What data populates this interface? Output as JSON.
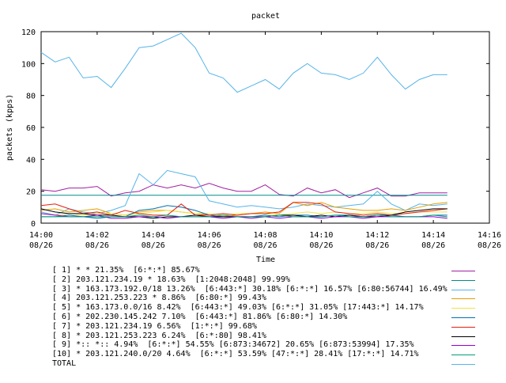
{
  "chart_data": {
    "type": "line",
    "title": "packet",
    "xlabel": "Time",
    "ylabel": "packets (kpps)",
    "ylim": [
      0,
      120
    ],
    "yticks": [
      0,
      20,
      40,
      60,
      80,
      100,
      120
    ],
    "x_ticks": [
      {
        "time": "14:00",
        "date": "08/26"
      },
      {
        "time": "14:02",
        "date": "08/26"
      },
      {
        "time": "14:04",
        "date": "08/26"
      },
      {
        "time": "14:06",
        "date": "08/26"
      },
      {
        "time": "14:08",
        "date": "08/26"
      },
      {
        "time": "14:10",
        "date": "08/26"
      },
      {
        "time": "14:12",
        "date": "08/26"
      },
      {
        "time": "14:14",
        "date": "08/26"
      },
      {
        "time": "14:16",
        "date": "08/26"
      }
    ],
    "x": [
      "14:00",
      "14:00:30",
      "14:01",
      "14:01:30",
      "14:02",
      "14:02:30",
      "14:03",
      "14:03:30",
      "14:04",
      "14:04:30",
      "14:05",
      "14:05:30",
      "14:06",
      "14:06:30",
      "14:07",
      "14:07:30",
      "14:08",
      "14:08:30",
      "14:09",
      "14:09:30",
      "14:10",
      "14:10:30",
      "14:11",
      "14:11:30",
      "14:12",
      "14:12:30",
      "14:13",
      "14:13:30",
      "14:14",
      "14:14:30"
    ],
    "grid": false,
    "legend_position": "bottom",
    "series": [
      {
        "name": "[ 1] * * 21.35%  [6:*:*] 85.67%",
        "color": "#a020a0",
        "values": [
          21,
          20,
          22,
          22,
          23,
          17,
          19,
          20,
          24,
          22,
          24,
          22,
          25,
          22,
          20,
          20,
          24,
          18,
          17,
          22,
          19,
          21,
          16,
          19,
          22,
          17,
          17,
          19,
          19,
          19
        ]
      },
      {
        "name": "[ 2] 203.121.234.19 * 18.63%  [1:2048:2048] 99.99%",
        "color": "#008b8b",
        "values": [
          17.5,
          17.5,
          17.5,
          17.5,
          17.5,
          17.5,
          17.5,
          17.5,
          17.5,
          17.5,
          17.5,
          17.5,
          17.5,
          17.5,
          17.5,
          17.5,
          17.5,
          17.5,
          17.5,
          17.5,
          17.5,
          17.5,
          17.5,
          17.5,
          17.5,
          17.5,
          17.5,
          17.5,
          17.5,
          17.5
        ]
      },
      {
        "name": "[ 3] * 163.173.192.0/18 13.26%  [6:443:*] 30.18% [6:*:*] 16.57% [6:80:56744] 16.49%",
        "color": "#56b4e9",
        "values": [
          7,
          5,
          9,
          7,
          6,
          8,
          11,
          31,
          24,
          33,
          31,
          29,
          14,
          12,
          10,
          11,
          10,
          9,
          10,
          12,
          11,
          10,
          11,
          12,
          20,
          12,
          8,
          12,
          11,
          12
        ]
      },
      {
        "name": "[ 4] 203.121.253.223 * 8.86%  [6:80:*] 99.43%",
        "color": "#e69f00",
        "values": [
          8,
          9,
          7,
          8,
          9,
          6,
          5,
          7,
          8,
          8,
          7,
          6,
          5,
          4,
          5,
          6,
          7,
          6,
          13,
          11,
          13,
          10,
          9,
          8,
          8,
          9,
          8,
          10,
          12,
          13
        ]
      },
      {
        "name": "[ 5] * 163.173.0.0/16 8.42%  [6:443:*] 49.03% [6:*:*] 31.05% [17:443:*] 14.17%",
        "color": "#f0e442",
        "values": [
          6,
          5,
          6,
          5,
          6,
          6,
          5,
          6,
          7,
          8,
          7,
          6,
          6,
          5,
          6,
          6,
          6,
          5,
          6,
          7,
          6,
          7,
          6,
          6,
          7,
          6,
          6,
          7,
          7,
          7
        ]
      },
      {
        "name": "[ 6] * 202.230.145.242 7.10%  [6:443:*] 81.86% [6:80:*] 14.30%",
        "color": "#0072b2",
        "values": [
          4,
          4,
          5,
          4,
          3,
          4,
          4,
          8,
          9,
          11,
          10,
          8,
          5,
          4,
          4,
          4,
          5,
          4,
          5,
          5,
          4,
          5,
          5,
          4,
          5,
          5,
          4,
          4,
          5,
          5
        ]
      },
      {
        "name": "[ 7] * 203.121.234.19 6.56%  [1:*:*] 99.68%",
        "color": "#e51e10",
        "values": [
          11,
          12,
          9,
          6,
          7,
          5,
          8,
          6,
          5,
          5,
          12,
          5,
          5,
          6,
          5,
          6,
          6,
          7,
          13,
          13,
          12,
          7,
          6,
          5,
          6,
          5,
          6,
          7,
          8,
          9
        ]
      },
      {
        "name": "[ 8] * 203.121.253.223 6.24%  [6:*:80] 98.41%",
        "color": "#000000",
        "values": [
          9,
          7,
          6,
          6,
          5,
          5,
          4,
          4,
          3,
          4,
          4,
          5,
          4,
          4,
          4,
          4,
          4,
          5,
          5,
          4,
          5,
          4,
          5,
          4,
          4,
          5,
          7,
          8,
          9,
          9
        ]
      },
      {
        "name": "[ 9] *:: *:: 4.94%  [6:*:*] 54.55% [6:873:34672] 20.65% [6:873:53994] 17.35%",
        "color": "#9400d3",
        "values": [
          6,
          5,
          4,
          4,
          5,
          3,
          3,
          4,
          4,
          3,
          4,
          4,
          4,
          3,
          4,
          3,
          4,
          3,
          4,
          4,
          3,
          4,
          4,
          3,
          4,
          4,
          4,
          4,
          4,
          3
        ]
      },
      {
        "name": "[10] * 203.121.240.0/20 4.64%  [6:*:*] 53.59% [47:*:*] 28.41% [17:*:*] 14.71%",
        "color": "#009e73",
        "values": [
          4,
          4,
          4,
          4,
          4,
          4,
          4,
          5,
          4,
          5,
          4,
          4,
          4,
          5,
          4,
          4,
          4,
          5,
          4,
          4,
          4,
          5,
          4,
          4,
          5,
          4,
          4,
          4,
          5,
          4
        ]
      },
      {
        "name": "TOTAL",
        "color": "#56b4e9",
        "values": [
          107,
          101,
          104,
          91,
          92,
          85,
          97,
          110,
          111,
          115,
          119,
          110,
          94,
          91,
          82,
          86,
          90,
          84,
          94,
          100,
          94,
          93,
          90,
          94,
          104,
          93,
          84,
          90,
          93,
          93
        ]
      }
    ]
  }
}
